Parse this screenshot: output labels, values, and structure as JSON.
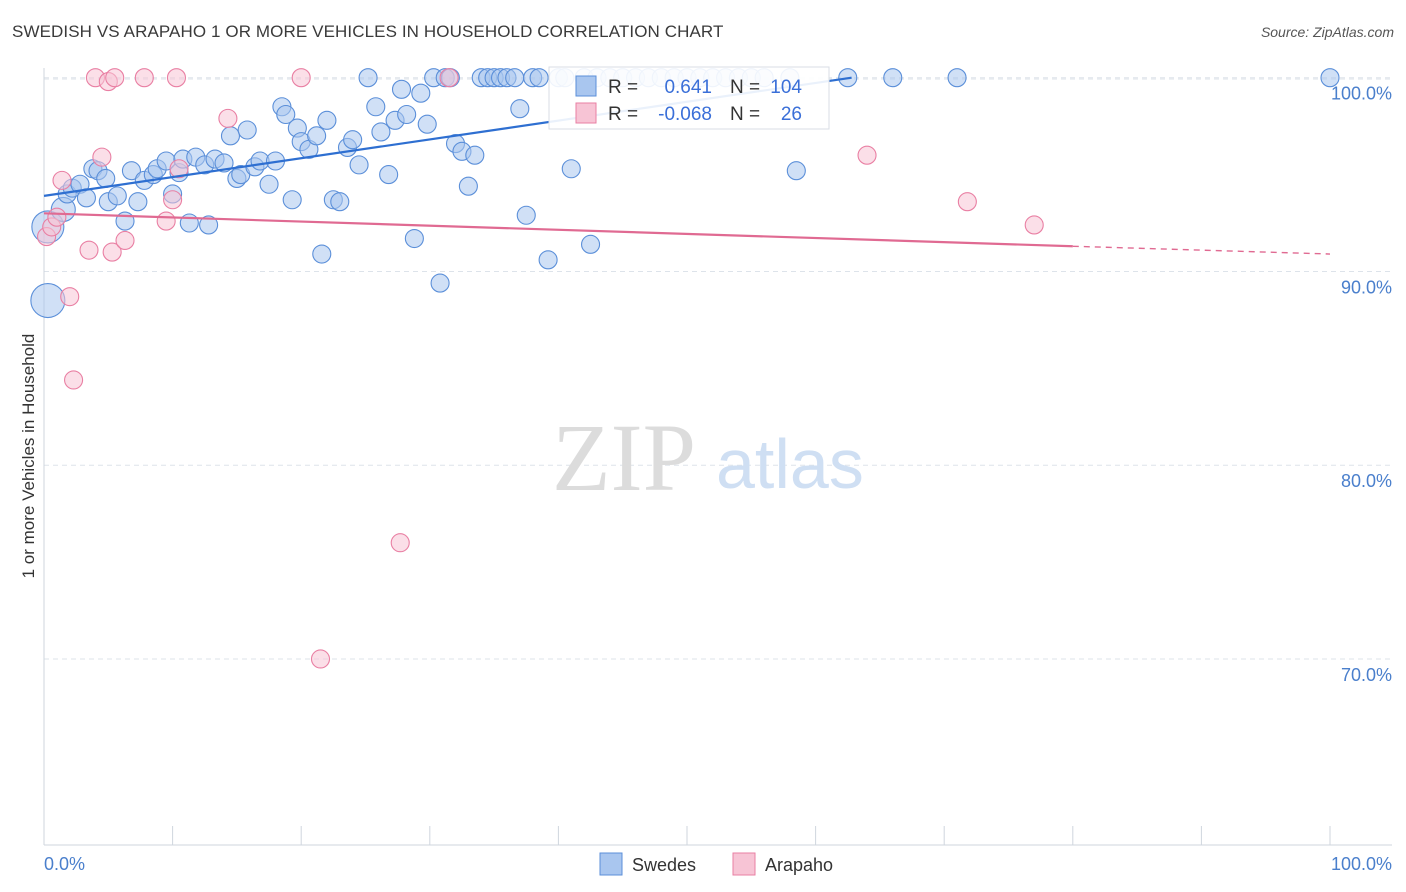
{
  "title": "SWEDISH VS ARAPAHO 1 OR MORE VEHICLES IN HOUSEHOLD CORRELATION CHART",
  "source": "Source: ZipAtlas.com",
  "watermark": {
    "zip": "ZIP",
    "atlas": "atlas"
  },
  "colors": {
    "blue": "#5b8fd9",
    "blue_fill": "#a9c6ef",
    "blue_line": "#2e6fd1",
    "pink": "#e97fa3",
    "pink_fill": "#f7c4d5",
    "pink_line": "#e06a92",
    "axis_text": "#4a7fcc",
    "grid": "#dde3ea"
  },
  "legend_stats": {
    "r_label": "R =",
    "n_label": "N =",
    "swedes": {
      "r": "0.641",
      "n": "104"
    },
    "arapaho": {
      "r": "-0.068",
      "n": "26"
    }
  },
  "chart_data": {
    "type": "scatter",
    "title": "SWEDISH VS ARAPAHO 1 OR MORE VEHICLES IN HOUSEHOLD CORRELATION CHART",
    "xlabel": "",
    "ylabel": "1 or more Vehicles in Household",
    "xlim": [
      0,
      100
    ],
    "ylim": [
      60.4,
      100.5
    ],
    "x_tick_labels": [
      "0.0%",
      "100.0%"
    ],
    "y_ticks": [
      70,
      80,
      90,
      100
    ],
    "y_tick_labels": [
      "70.0%",
      "80.0%",
      "90.0%",
      "100.0%"
    ],
    "grid": true,
    "legend_position": "bottom-center",
    "series": [
      {
        "name": "Swedes",
        "color": "#5b8fd9",
        "trend": {
          "x": [
            0,
            62.8
          ],
          "y": [
            93.9,
            100.0
          ]
        },
        "points": [
          [
            0.3,
            92.3
          ],
          [
            0.3,
            88.5
          ],
          [
            1.5,
            93.2
          ],
          [
            1.8,
            94.0
          ],
          [
            2.2,
            94.3
          ],
          [
            2.8,
            94.5
          ],
          [
            3.3,
            93.8
          ],
          [
            3.8,
            95.3
          ],
          [
            4.2,
            95.2
          ],
          [
            4.8,
            94.8
          ],
          [
            5.0,
            93.6
          ],
          [
            5.7,
            93.9
          ],
          [
            6.3,
            92.6
          ],
          [
            6.8,
            95.2
          ],
          [
            7.3,
            93.6
          ],
          [
            7.8,
            94.7
          ],
          [
            8.5,
            95.0
          ],
          [
            8.8,
            95.3
          ],
          [
            9.5,
            95.7
          ],
          [
            10.0,
            94.0
          ],
          [
            10.5,
            95.1
          ],
          [
            10.8,
            95.8
          ],
          [
            11.3,
            92.5
          ],
          [
            11.8,
            95.9
          ],
          [
            12.5,
            95.5
          ],
          [
            12.8,
            92.4
          ],
          [
            13.3,
            95.8
          ],
          [
            14.0,
            95.6
          ],
          [
            14.5,
            97.0
          ],
          [
            15.0,
            94.8
          ],
          [
            15.3,
            95.0
          ],
          [
            15.8,
            97.3
          ],
          [
            16.4,
            95.4
          ],
          [
            16.8,
            95.7
          ],
          [
            17.5,
            94.5
          ],
          [
            18.0,
            95.7
          ],
          [
            18.5,
            98.5
          ],
          [
            18.8,
            98.1
          ],
          [
            19.3,
            93.7
          ],
          [
            19.7,
            97.4
          ],
          [
            20.0,
            96.7
          ],
          [
            20.6,
            96.3
          ],
          [
            21.2,
            97.0
          ],
          [
            21.6,
            90.9
          ],
          [
            22.0,
            97.8
          ],
          [
            22.5,
            93.7
          ],
          [
            23.0,
            93.6
          ],
          [
            23.6,
            96.4
          ],
          [
            24.0,
            96.8
          ],
          [
            24.5,
            95.5
          ],
          [
            25.2,
            100.0
          ],
          [
            25.8,
            98.5
          ],
          [
            26.2,
            97.2
          ],
          [
            26.8,
            95.0
          ],
          [
            27.3,
            97.8
          ],
          [
            27.8,
            99.4
          ],
          [
            28.2,
            98.1
          ],
          [
            28.8,
            91.7
          ],
          [
            29.3,
            99.2
          ],
          [
            29.8,
            97.6
          ],
          [
            30.3,
            100.0
          ],
          [
            30.8,
            89.4
          ],
          [
            31.2,
            100.0
          ],
          [
            31.6,
            100.0
          ],
          [
            32.0,
            96.6
          ],
          [
            32.5,
            96.2
          ],
          [
            33.0,
            94.4
          ],
          [
            33.5,
            96.0
          ],
          [
            34.0,
            100.0
          ],
          [
            34.5,
            100.0
          ],
          [
            35.0,
            100.0
          ],
          [
            35.5,
            100.0
          ],
          [
            36.0,
            100.0
          ],
          [
            36.6,
            100.0
          ],
          [
            37.0,
            98.4
          ],
          [
            37.5,
            92.9
          ],
          [
            38.0,
            100.0
          ],
          [
            38.5,
            100.0
          ],
          [
            39.2,
            90.6
          ],
          [
            40.0,
            100.0
          ],
          [
            40.5,
            100.0
          ],
          [
            41.0,
            95.3
          ],
          [
            42.0,
            100.0
          ],
          [
            42.5,
            91.4
          ],
          [
            43.0,
            100.0
          ],
          [
            44.0,
            100.0
          ],
          [
            45.0,
            100.0
          ],
          [
            46.0,
            100.0
          ],
          [
            47.0,
            100.0
          ],
          [
            48.0,
            100.0
          ],
          [
            49.0,
            100.0
          ],
          [
            50.0,
            100.0
          ],
          [
            51.0,
            100.0
          ],
          [
            52.0,
            100.0
          ],
          [
            53.0,
            100.0
          ],
          [
            54.0,
            100.0
          ],
          [
            55.0,
            100.0
          ],
          [
            56.0,
            100.0
          ],
          [
            58.0,
            100.0
          ],
          [
            58.5,
            95.2
          ],
          [
            62.5,
            100.0
          ],
          [
            66.0,
            100.0
          ],
          [
            71.0,
            100.0
          ],
          [
            100.0,
            100.0
          ]
        ]
      },
      {
        "name": "Arapaho",
        "color": "#e97fa3",
        "trend": {
          "x": [
            0,
            80.0
          ],
          "y": [
            93.0,
            91.3
          ]
        },
        "trend_dashed": {
          "x": [
            80.0,
            100.0
          ],
          "y": [
            91.3,
            90.9
          ]
        },
        "points": [
          [
            0.2,
            91.8
          ],
          [
            0.6,
            92.3
          ],
          [
            1.0,
            92.8
          ],
          [
            1.4,
            94.7
          ],
          [
            2.0,
            88.7
          ],
          [
            2.3,
            84.4
          ],
          [
            3.5,
            91.1
          ],
          [
            4.0,
            100.0
          ],
          [
            4.5,
            95.9
          ],
          [
            5.0,
            99.8
          ],
          [
            5.3,
            91.0
          ],
          [
            6.3,
            91.6
          ],
          [
            7.8,
            100.0
          ],
          [
            9.5,
            92.6
          ],
          [
            10.3,
            100.0
          ],
          [
            10.0,
            93.7
          ],
          [
            10.5,
            95.3
          ],
          [
            14.3,
            97.9
          ],
          [
            20.0,
            100.0
          ],
          [
            21.5,
            70.0
          ],
          [
            27.7,
            76.0
          ],
          [
            31.5,
            100.0
          ],
          [
            64.0,
            96.0
          ],
          [
            71.8,
            93.6
          ],
          [
            77.0,
            92.4
          ],
          [
            5.5,
            100.0
          ]
        ]
      }
    ]
  },
  "legend": {
    "items": [
      "Swedes",
      "Arapaho"
    ]
  }
}
